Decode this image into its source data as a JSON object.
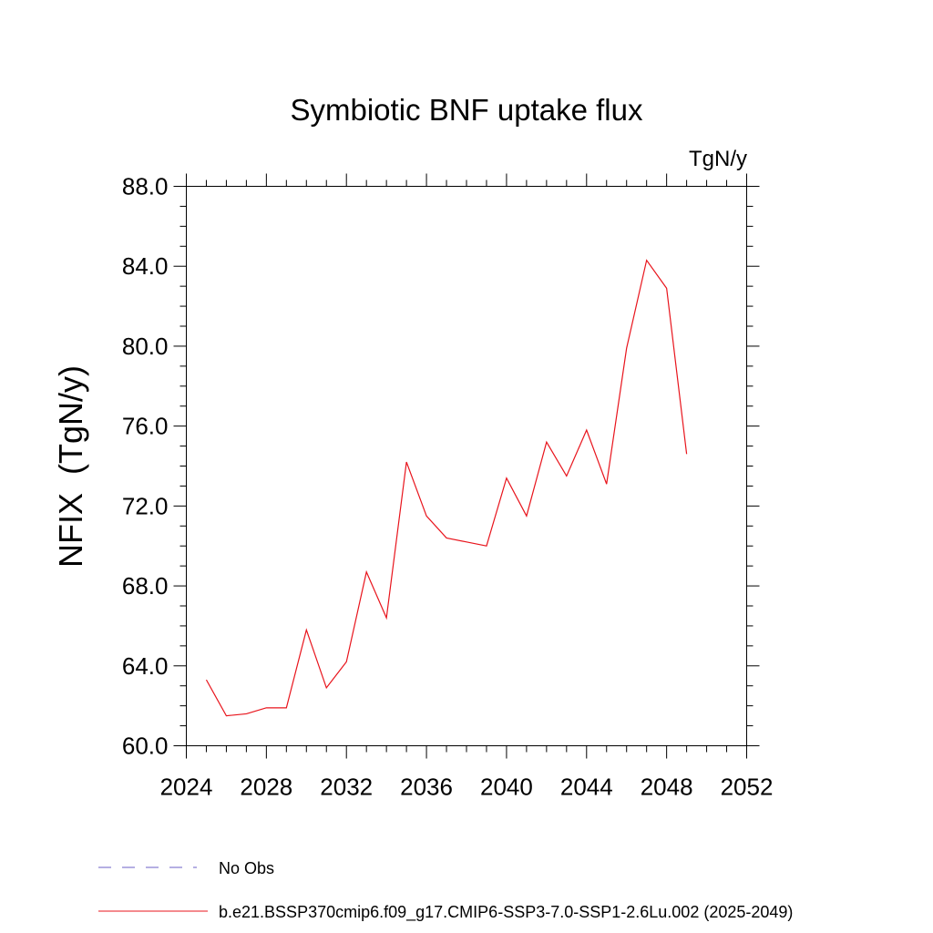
{
  "chart_data": {
    "type": "line",
    "title": "Symbiotic BNF uptake flux",
    "units": "TgN/y",
    "ylabel": "NFIX  (TgN/y)",
    "xlabel": "",
    "xlim": [
      2024,
      2052
    ],
    "ylim": [
      60.0,
      88.0
    ],
    "xticks": [
      "2024",
      "2028",
      "2032",
      "2036",
      "2040",
      "2044",
      "2048",
      "2052"
    ],
    "yticks": [
      "60.0",
      "64.0",
      "68.0",
      "72.0",
      "76.0",
      "80.0",
      "84.0",
      "88.0"
    ],
    "series": [
      {
        "name": "b.e21.BSSP370cmip6.f09_g17.CMIP6-SSP3-7.0-SSP1-2.6Lu.002 (2025-2049)",
        "color": "#e8141c",
        "x": [
          2025,
          2026,
          2027,
          2028,
          2029,
          2030,
          2031,
          2032,
          2033,
          2034,
          2035,
          2036,
          2037,
          2038,
          2039,
          2040,
          2041,
          2042,
          2043,
          2044,
          2045,
          2046,
          2047,
          2048,
          2049
        ],
        "values": [
          63.3,
          61.5,
          61.6,
          61.9,
          61.9,
          65.8,
          62.9,
          64.2,
          68.7,
          66.4,
          74.2,
          71.5,
          70.4,
          70.2,
          70.0,
          73.4,
          71.5,
          75.2,
          73.5,
          75.8,
          73.1,
          79.9,
          84.3,
          82.9,
          74.6
        ]
      }
    ],
    "legend": [
      {
        "label": "No Obs",
        "style": "dashed",
        "color": "#6b5fc7"
      },
      {
        "label": "b.e21.BSSP370cmip6.f09_g17.CMIP6-SSP3-7.0-SSP1-2.6Lu.002 (2025-2049)",
        "style": "solid",
        "color": "#e8141c"
      }
    ],
    "legend_position": "bottom"
  }
}
